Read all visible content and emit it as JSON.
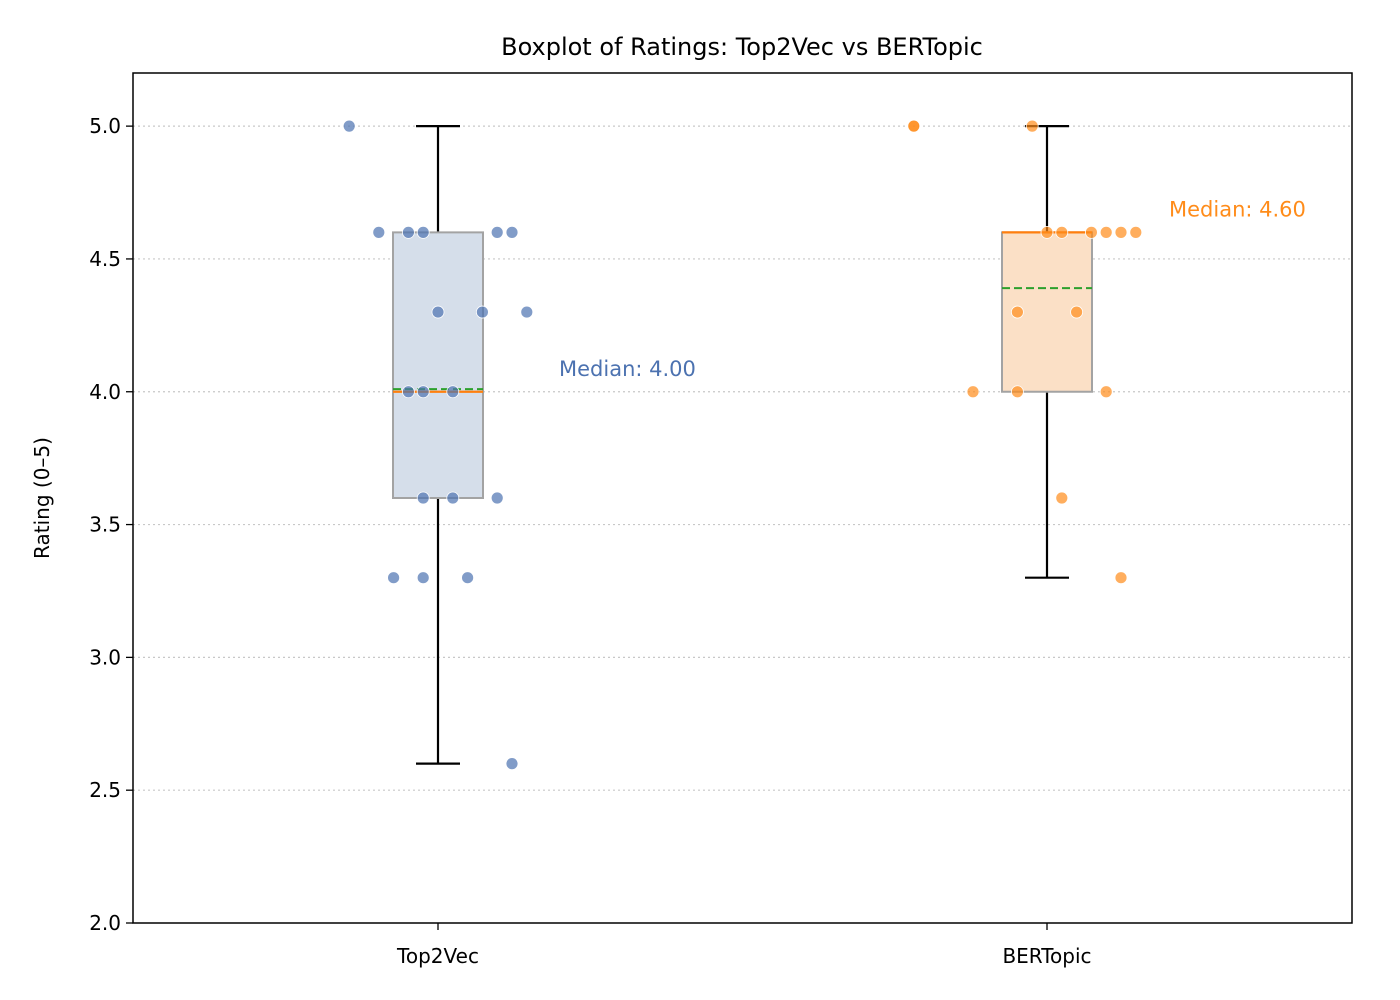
{
  "chart_data": {
    "type": "boxplot",
    "title": "Boxplot of Ratings: Top2Vec vs BERTopic",
    "xlabel": "",
    "ylabel": "Rating (0–5)",
    "ylim": [
      2.0,
      5.2
    ],
    "yticks": [
      2.0,
      2.5,
      3.0,
      3.5,
      4.0,
      4.5,
      5.0
    ],
    "ytick_labels": [
      "2.0",
      "2.5",
      "3.0",
      "3.5",
      "4.0",
      "4.5",
      "5.0"
    ],
    "grid": "horizontal dotted",
    "categories": [
      "Top2Vec",
      "BERTopic"
    ],
    "series": [
      {
        "name": "Top2Vec",
        "color": "#4c72b0",
        "box_fill": "#d5deea",
        "whisker_low": 2.6,
        "q1": 3.6,
        "median": 4.0,
        "q3": 4.6,
        "whisker_high": 5.0,
        "mean": 4.01,
        "median_label": "Median: 4.00",
        "points": [
          {
            "x": -0.06,
            "y": 5.0
          },
          {
            "x": -0.04,
            "y": 4.6
          },
          {
            "x": -0.02,
            "y": 4.6
          },
          {
            "x": -0.01,
            "y": 4.6
          },
          {
            "x": 0.04,
            "y": 4.6
          },
          {
            "x": 0.05,
            "y": 4.6
          },
          {
            "x": 0.0,
            "y": 4.3
          },
          {
            "x": 0.03,
            "y": 4.3
          },
          {
            "x": 0.06,
            "y": 4.3
          },
          {
            "x": -0.02,
            "y": 4.0
          },
          {
            "x": -0.01,
            "y": 4.0
          },
          {
            "x": 0.01,
            "y": 4.0
          },
          {
            "x": -0.01,
            "y": 3.6
          },
          {
            "x": 0.01,
            "y": 3.6
          },
          {
            "x": 0.04,
            "y": 3.6
          },
          {
            "x": -0.03,
            "y": 3.3
          },
          {
            "x": -0.01,
            "y": 3.3
          },
          {
            "x": 0.02,
            "y": 3.3
          },
          {
            "x": 0.05,
            "y": 2.6
          }
        ]
      },
      {
        "name": "BERTopic",
        "color": "#ff8c1a",
        "box_fill": "#fbe0c6",
        "whisker_low": 3.3,
        "q1": 4.0,
        "median": 4.6,
        "q3": 4.6,
        "whisker_high": 5.0,
        "mean": 4.39,
        "median_label": "Median: 4.60",
        "points": [
          {
            "x": -0.09,
            "y": 5.0
          },
          {
            "x": -0.09,
            "y": 5.0
          },
          {
            "x": -0.01,
            "y": 5.0
          },
          {
            "x": 0.0,
            "y": 4.6
          },
          {
            "x": 0.01,
            "y": 4.6
          },
          {
            "x": 0.03,
            "y": 4.6
          },
          {
            "x": 0.04,
            "y": 4.6
          },
          {
            "x": 0.05,
            "y": 4.6
          },
          {
            "x": 0.06,
            "y": 4.6
          },
          {
            "x": -0.02,
            "y": 4.3
          },
          {
            "x": 0.02,
            "y": 4.3
          },
          {
            "x": -0.05,
            "y": 4.0
          },
          {
            "x": -0.02,
            "y": 4.0
          },
          {
            "x": 0.04,
            "y": 4.0
          },
          {
            "x": 0.01,
            "y": 3.6
          },
          {
            "x": 0.05,
            "y": 3.3
          }
        ]
      }
    ]
  }
}
